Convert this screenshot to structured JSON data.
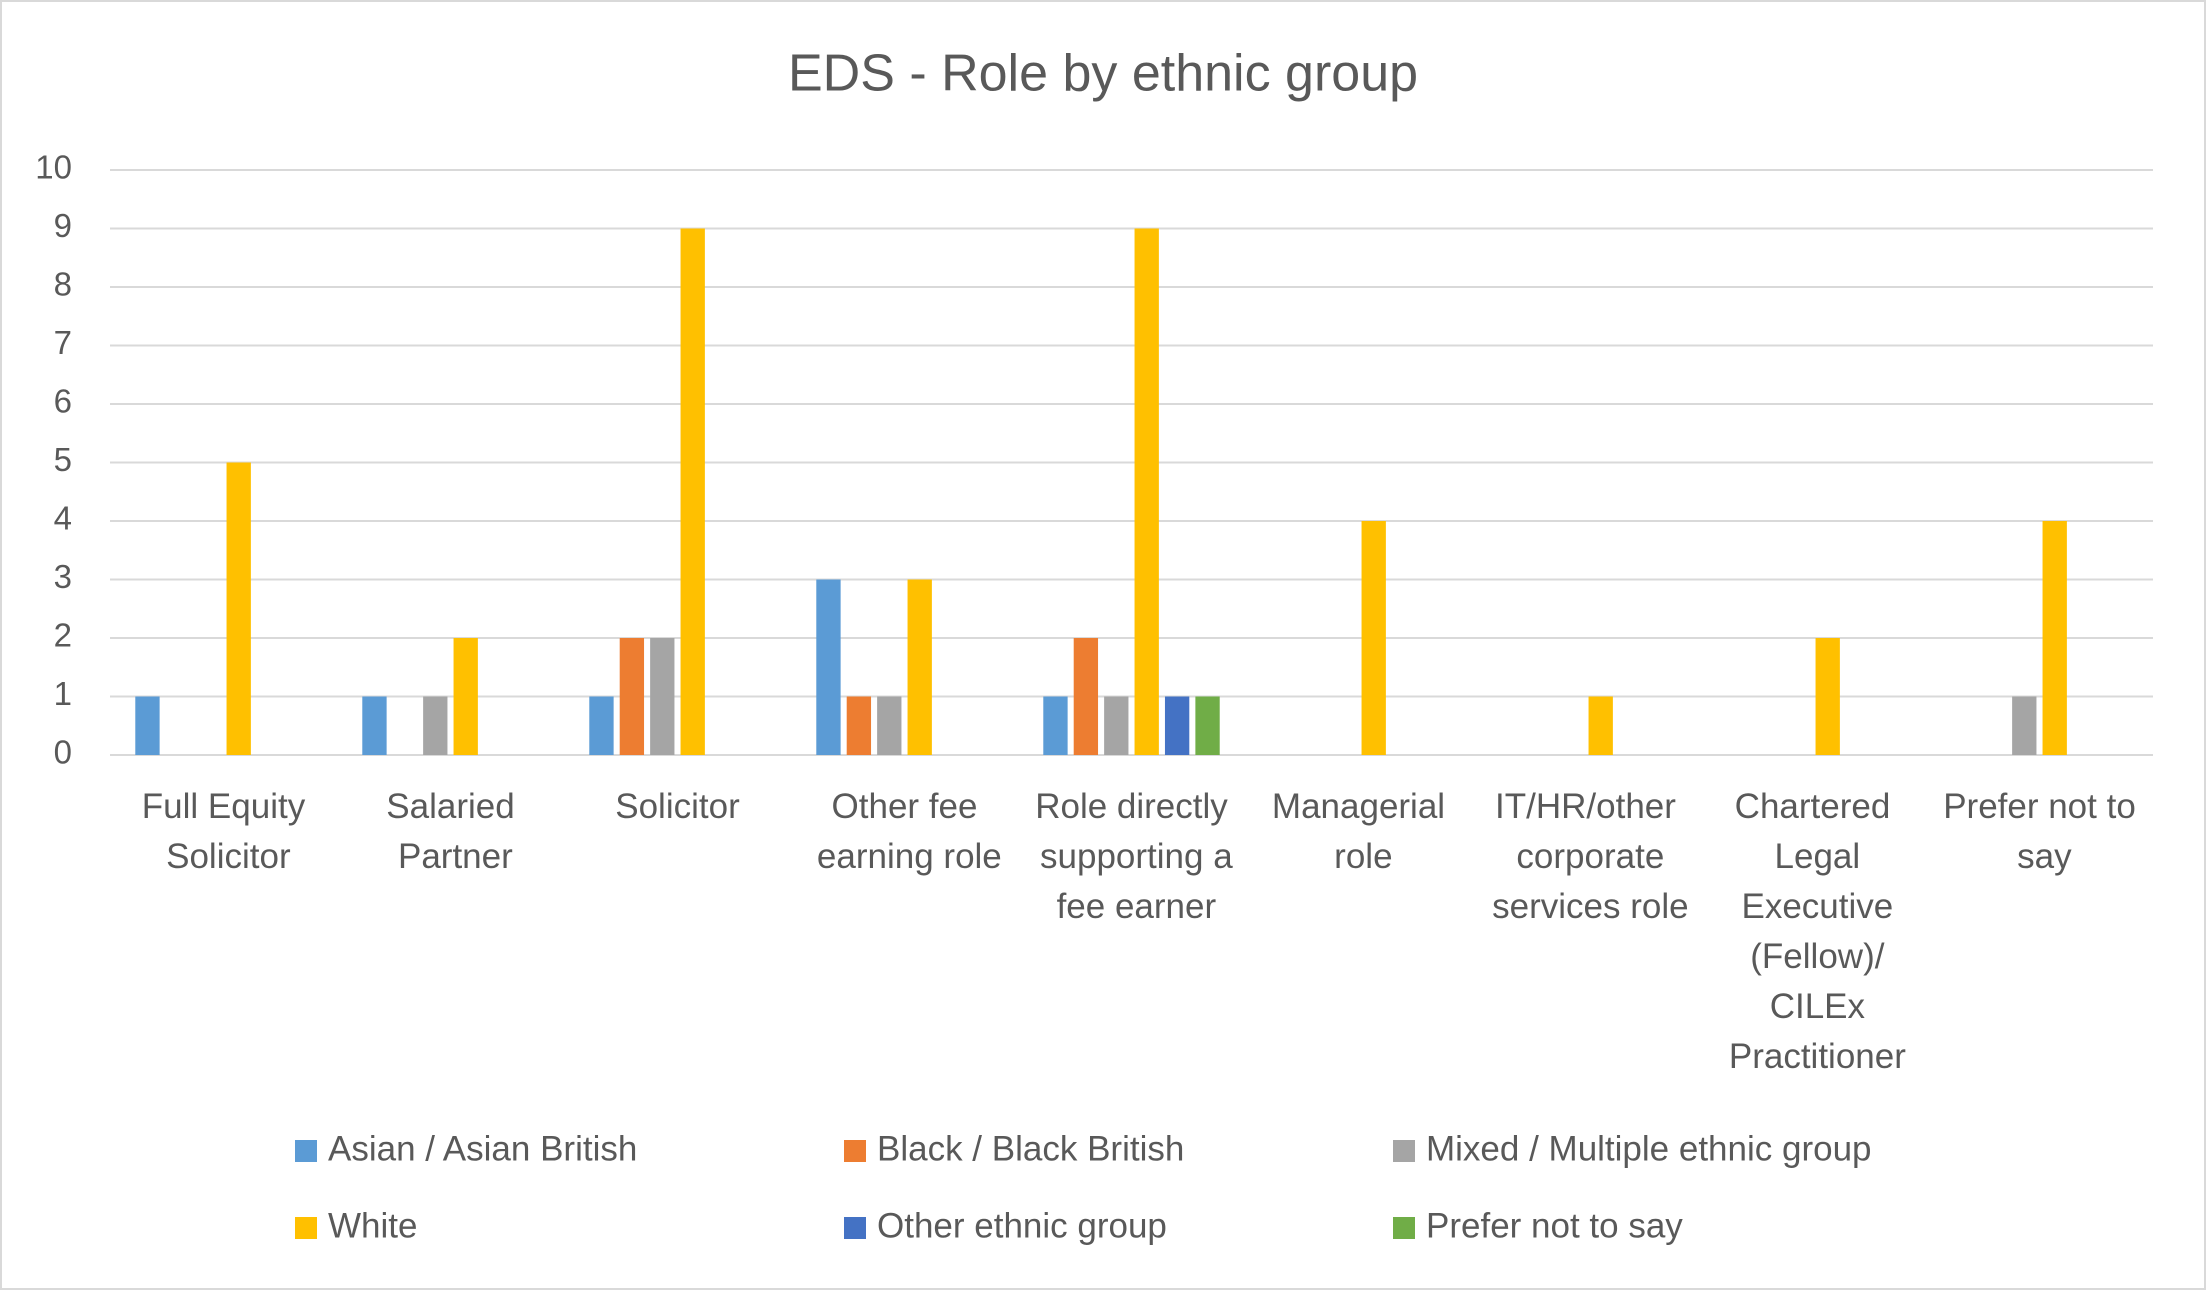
{
  "chart_data": {
    "type": "bar",
    "title": "EDS - Role by ethnic group",
    "categories": [
      "Full Equity Solicitor",
      "Salaried Partner",
      "Solicitor",
      "Other fee earning role",
      "Role directly supporting a fee earner",
      "Managerial role",
      "IT/HR/other corporate services role",
      "Chartered Legal Executive (Fellow)/ CILEx Practitioner",
      "Prefer not to say"
    ],
    "series": [
      {
        "name": "Asian / Asian British",
        "color": "#5b9bd5",
        "values": [
          1,
          1,
          1,
          3,
          1,
          0,
          0,
          0,
          0
        ]
      },
      {
        "name": "Black / Black British",
        "color": "#ed7d31",
        "values": [
          0,
          0,
          2,
          1,
          2,
          0,
          0,
          0,
          0
        ]
      },
      {
        "name": "Mixed / Multiple ethnic group",
        "color": "#a5a5a5",
        "values": [
          0,
          1,
          2,
          1,
          1,
          0,
          0,
          0,
          1
        ]
      },
      {
        "name": "White",
        "color": "#ffc000",
        "values": [
          5,
          2,
          9,
          3,
          9,
          4,
          1,
          2,
          4
        ]
      },
      {
        "name": "Other ethnic group",
        "color": "#4472c4",
        "values": [
          0,
          0,
          0,
          0,
          1,
          0,
          0,
          0,
          0
        ]
      },
      {
        "name": "Prefer not to say",
        "color": "#70ad47",
        "values": [
          0,
          0,
          0,
          0,
          1,
          0,
          0,
          0,
          0
        ]
      }
    ],
    "ylim": [
      0,
      10
    ],
    "yticks": [
      0,
      1,
      2,
      3,
      4,
      5,
      6,
      7,
      8,
      9,
      10
    ],
    "grid": true,
    "legend": "bottom"
  }
}
